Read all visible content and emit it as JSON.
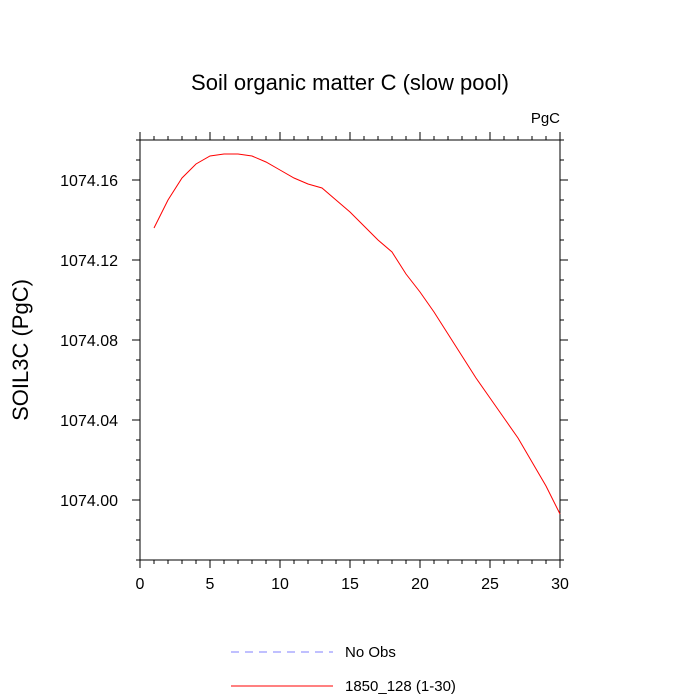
{
  "chart_data": {
    "type": "line",
    "title": "Soil organic matter C (slow pool)",
    "unit_label": "PgC",
    "ylabel": "SOIL3C  (PgC)",
    "xlabel": "",
    "xlim": [
      0,
      30
    ],
    "ylim": [
      1073.97,
      1074.18
    ],
    "x_ticks": [
      0,
      5,
      10,
      15,
      20,
      25,
      30
    ],
    "y_ticks": [
      1074.0,
      1074.04,
      1074.08,
      1074.12,
      1074.16
    ],
    "y_tick_labels": [
      "1074.00",
      "1074.04",
      "1074.08",
      "1074.12",
      "1074.16"
    ],
    "x_tick_labels": [
      "0",
      "5",
      "10",
      "15",
      "20",
      "25",
      "30"
    ],
    "x_minor_step": 1,
    "y_minor_step": 0.01,
    "grid": false,
    "legend_position": "bottom",
    "series": [
      {
        "name": "No Obs",
        "style": "dashed",
        "color": "#8080ff",
        "x": [],
        "y": []
      },
      {
        "name": "1850_128 (1-30)",
        "style": "solid",
        "color": "#ff0000",
        "x": [
          1,
          2,
          3,
          4,
          5,
          6,
          7,
          8,
          9,
          10,
          11,
          12,
          13,
          14,
          15,
          16,
          17,
          18,
          19,
          20,
          21,
          22,
          23,
          24,
          25,
          26,
          27,
          28,
          29,
          30
        ],
        "y": [
          1074.136,
          1074.15,
          1074.161,
          1074.168,
          1074.172,
          1074.173,
          1074.173,
          1074.172,
          1074.169,
          1074.165,
          1074.161,
          1074.158,
          1074.156,
          1074.15,
          1074.144,
          1074.137,
          1074.13,
          1074.124,
          1074.113,
          1074.104,
          1074.094,
          1074.083,
          1074.072,
          1074.061,
          1074.051,
          1074.041,
          1074.031,
          1074.019,
          1074.007,
          1073.993
        ]
      }
    ]
  }
}
